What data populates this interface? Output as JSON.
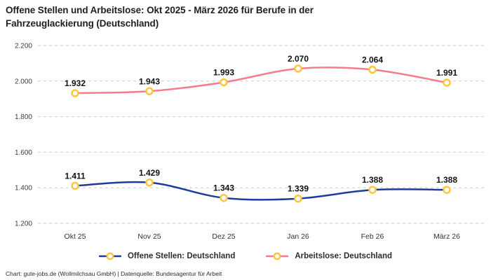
{
  "title": "Offene Stellen und Arbeitslose: Okt 2025 - März 2026 für Berufe in der Fahrzeuglackierung (Deutschland)",
  "title_lines": [
    "Offene Stellen und Arbeitslose: Okt 2025 - März 2026 für Berufe in der",
    "Fahrzeuglackierung (Deutschland)"
  ],
  "footer": "Chart: gute-jobs.de (Wollmilchsau GmbH) | Datenquelle: Bundesagentur für Arbeit",
  "colors": {
    "background": "#ffffff",
    "title_text": "#1f1f1f",
    "grid": "#cbcbcb",
    "tick_text": "#3c3c3c",
    "data_label_text": "#111111",
    "marker_ring": "#fec63d",
    "marker_fill": "#ffffff",
    "series_open_positions": "#1e3d9b",
    "series_unemployed": "#f87a8e"
  },
  "chart_data": {
    "type": "line",
    "categories": [
      "Okt 25",
      "Nov 25",
      "Dez 25",
      "Jan 26",
      "Feb 26",
      "März 26"
    ],
    "series": [
      {
        "name": "Offene Stellen: Deutschland",
        "color": "#1e3d9b",
        "values": [
          1411,
          1429,
          1343,
          1339,
          1388,
          1388
        ],
        "labels": [
          "1.411",
          "1.429",
          "1.343",
          "1.339",
          "1.388",
          "1.388"
        ]
      },
      {
        "name": "Arbeitslose: Deutschland",
        "color": "#f87a8e",
        "values": [
          1932,
          1943,
          1993,
          2070,
          2064,
          1991
        ],
        "labels": [
          "1.932",
          "1.943",
          "1.993",
          "2.070",
          "2.064",
          "1.991"
        ]
      }
    ],
    "y_ticks": [
      1200,
      1400,
      1600,
      1800,
      2000,
      2200
    ],
    "y_tick_labels": [
      "1.200",
      "1.400",
      "1.600",
      "1.800",
      "2.000",
      "2.200"
    ],
    "ylim": [
      1200,
      2200
    ],
    "grid": "horizontal-dashed",
    "legend_position": "bottom",
    "marker": {
      "shape": "ring",
      "stroke": "#fec63d",
      "fill": "#ffffff"
    }
  }
}
